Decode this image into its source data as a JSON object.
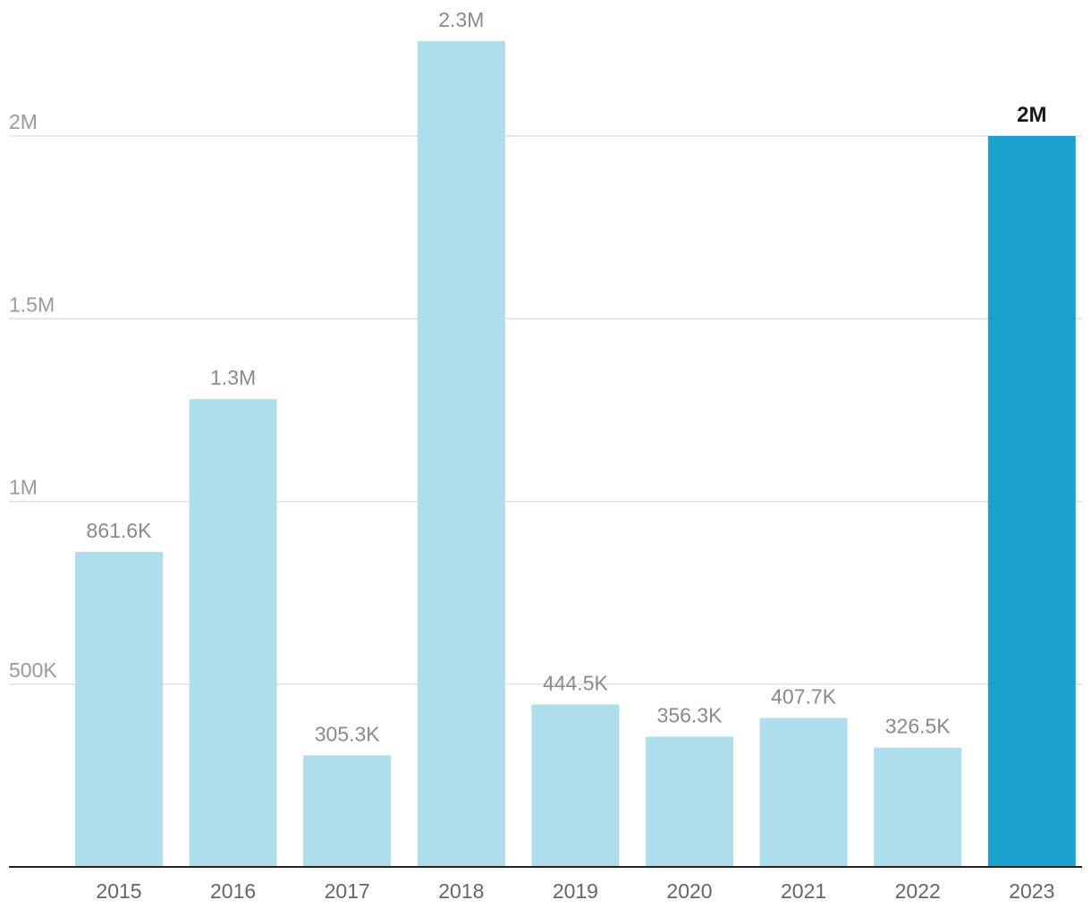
{
  "chart_data": {
    "type": "bar",
    "categories": [
      "2015",
      "2016",
      "2017",
      "2018",
      "2019",
      "2020",
      "2021",
      "2022",
      "2023"
    ],
    "values": [
      861600,
      1280000,
      305300,
      2260000,
      444500,
      356300,
      407700,
      326500,
      2000000
    ],
    "data_labels": [
      "861.6K",
      "1.3M",
      "305.3K",
      "2.3M",
      "444.5K",
      "356.3K",
      "407.7K",
      "326.5K",
      "2M"
    ],
    "highlight_index": 8,
    "y_ticks": [
      {
        "value": 500000,
        "label": "500K"
      },
      {
        "value": 1000000,
        "label": "1M"
      },
      {
        "value": 1500000,
        "label": "1.5M"
      },
      {
        "value": 2000000,
        "label": "2M"
      }
    ],
    "ylim": [
      0,
      2000000
    ],
    "grid": true,
    "colors": {
      "bar": "#aedeec",
      "highlight": "#1aa1cc"
    },
    "title": "",
    "xlabel": "",
    "ylabel": ""
  }
}
